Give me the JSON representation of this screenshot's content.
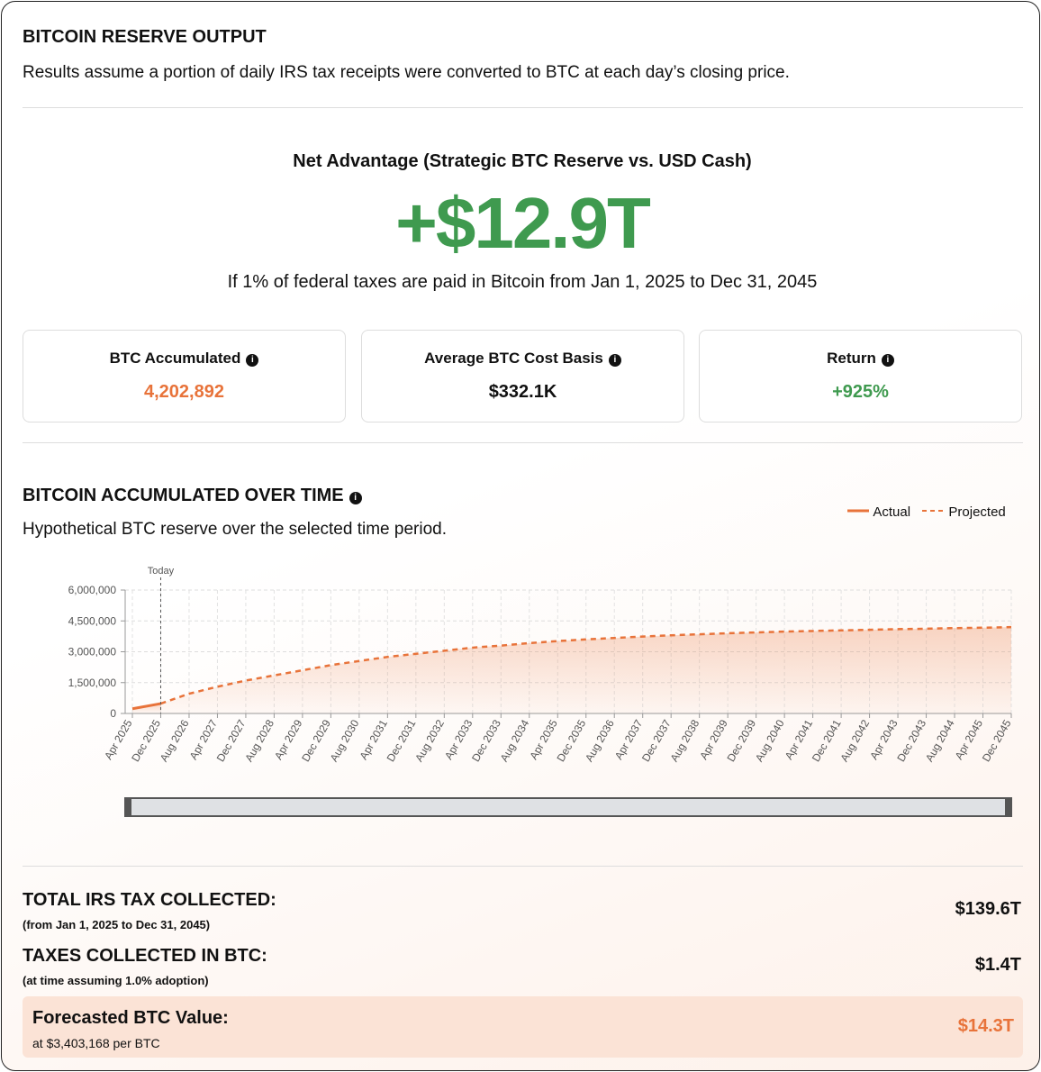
{
  "header": {
    "title": "BITCOIN RESERVE OUTPUT",
    "subtitle": "Results assume a portion of daily IRS tax receipts were converted to BTC at each day’s closing price."
  },
  "net_advantage": {
    "label": "Net Advantage (Strategic BTC Reserve vs. USD Cash)",
    "value": "+$12.9T",
    "description": "If 1% of federal taxes are paid in Bitcoin from Jan 1, 2025 to Dec 31, 2045"
  },
  "stats": [
    {
      "label": "BTC Accumulated",
      "value": "4,202,892"
    },
    {
      "label": "Average BTC Cost Basis",
      "value": "$332.1K"
    },
    {
      "label": "Return",
      "value": "+925%"
    }
  ],
  "chart_section": {
    "title": "BITCOIN ACCUMULATED OVER TIME",
    "subtitle": "Hypothetical BTC reserve over the selected time period."
  },
  "chart_data": {
    "type": "line",
    "categories": [
      "Apr 2025",
      "Dec 2025",
      "Aug 2026",
      "Apr 2027",
      "Dec 2027",
      "Aug 2028",
      "Apr 2029",
      "Dec 2029",
      "Aug 2030",
      "Apr 2031",
      "Dec 2031",
      "Aug 2032",
      "Apr 2033",
      "Dec 2033",
      "Aug 2034",
      "Apr 2035",
      "Dec 2035",
      "Aug 2036",
      "Apr 2037",
      "Dec 2037",
      "Aug 2038",
      "Apr 2039",
      "Dec 2039",
      "Aug 2040",
      "Apr 2041",
      "Dec 2041",
      "Aug 2042",
      "Apr 2043",
      "Dec 2043",
      "Aug 2044",
      "Apr 2045",
      "Dec 2045"
    ],
    "series": [
      {
        "name": "Actual",
        "color": "#e8733a",
        "line_style": "solid",
        "values": [
          230000,
          480000,
          null,
          null,
          null,
          null,
          null,
          null,
          null,
          null,
          null,
          null,
          null,
          null,
          null,
          null,
          null,
          null,
          null,
          null,
          null,
          null,
          null,
          null,
          null,
          null,
          null,
          null,
          null,
          null,
          null,
          null
        ]
      },
      {
        "name": "Projected",
        "color": "#e8733a",
        "line_style": "dashed",
        "values": [
          null,
          480000,
          960000,
          1300000,
          1600000,
          1850000,
          2100000,
          2350000,
          2550000,
          2750000,
          2900000,
          3050000,
          3200000,
          3300000,
          3420000,
          3520000,
          3600000,
          3670000,
          3740000,
          3800000,
          3850000,
          3900000,
          3940000,
          3980000,
          4010000,
          4040000,
          4070000,
          4100000,
          4120000,
          4150000,
          4170000,
          4200000
        ]
      }
    ],
    "ylim": [
      0,
      6000000
    ],
    "yticks": [
      0,
      {
        "value": 1500000,
        "label": "1,500,000"
      },
      {
        "value": 3000000,
        "label": "3,000,000"
      },
      {
        "value": 4500000,
        "label": "4,500,000"
      },
      {
        "value": 6000000,
        "label": "6,000,000"
      }
    ],
    "grid": true,
    "annotation": {
      "text": "Today",
      "x": "Dec 2025"
    }
  },
  "summary": {
    "rows": [
      {
        "label": "TOTAL IRS TAX COLLECTED:",
        "note": "(from Jan 1, 2025 to Dec 31, 2045)",
        "value": "$139.6T"
      },
      {
        "label": "TAXES COLLECTED IN BTC:",
        "note": "(at time assuming 1.0% adoption)",
        "value": "$1.4T"
      },
      {
        "label": "Forecasted BTC Value:",
        "note": "at $3,403,168 per BTC",
        "value": "$14.3T"
      }
    ]
  }
}
